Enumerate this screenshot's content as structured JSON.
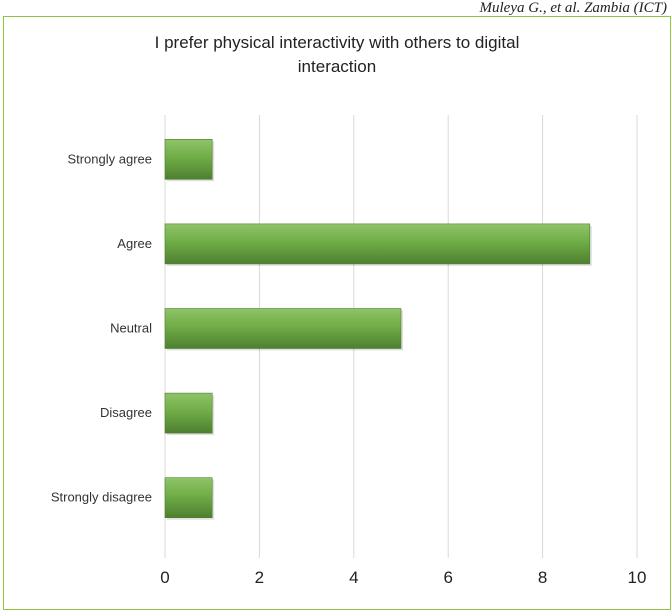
{
  "header": {
    "citation": "Muleya G., et al. Zambia (ICT)"
  },
  "colors": {
    "bar_fill": "#70ad47",
    "bar_highlight": "#8fc468",
    "bar_shadow": "#4e7f30",
    "grid": "#d9d9d9",
    "frame": "#8dc63f"
  },
  "chart_data": {
    "type": "bar",
    "orientation": "horizontal",
    "title": "I prefer physical interactivity with others to digital interaction",
    "title_lines": [
      "I prefer physical interactivity with others to digital",
      "interaction"
    ],
    "categories": [
      "Strongly agree",
      "Agree",
      "Neutral",
      "Disagree",
      "Strongly disagree"
    ],
    "values": [
      1,
      9,
      5,
      1,
      1
    ],
    "xlabel": "",
    "ylabel": "",
    "xlim": [
      0,
      10
    ],
    "x_ticks": [
      0,
      2,
      4,
      6,
      8,
      10
    ],
    "grid": true,
    "legend": "none"
  }
}
